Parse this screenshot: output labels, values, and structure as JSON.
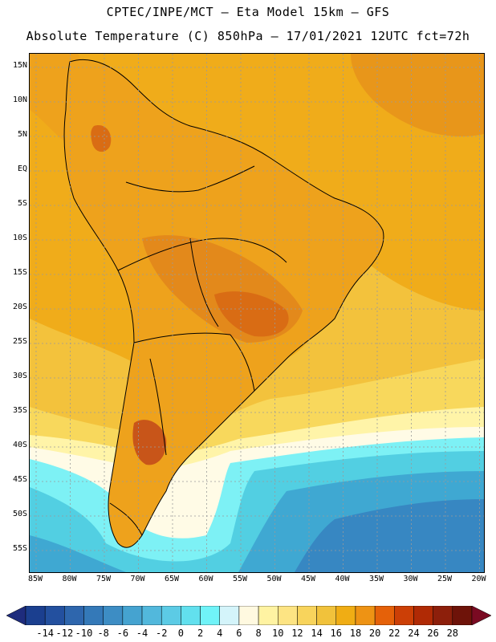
{
  "title": {
    "line1": "CPTEC/INPE/MCT –  Eta Model 15km – GFS",
    "line2": "Absolute Temperature (C) 850hPa – 17/01/2021 12UTC fct=72h"
  },
  "lat_labels": [
    "15N",
    "10N",
    "5N",
    "EQ",
    "5S",
    "10S",
    "15S",
    "20S",
    "25S",
    "30S",
    "35S",
    "40S",
    "45S",
    "50S",
    "55S"
  ],
  "lon_labels": [
    "85W",
    "80W",
    "75W",
    "70W",
    "65W",
    "60W",
    "55W",
    "50W",
    "45W",
    "40W",
    "35W",
    "30W",
    "25W",
    "20W"
  ],
  "colorbar": {
    "labels": [
      "-14",
      "-12",
      "-10",
      "-8",
      "-6",
      "-4",
      "-2",
      "0",
      "2",
      "4",
      "6",
      "8",
      "10",
      "12",
      "14",
      "16",
      "18",
      "20",
      "22",
      "24",
      "26",
      "28"
    ],
    "colors": [
      "#1b3f8f",
      "#23509f",
      "#2e66ad",
      "#3479b8",
      "#3d8dc4",
      "#45a3d0",
      "#52b8dc",
      "#5ccbe5",
      "#62e0ee",
      "#70f3f8",
      "#d4f4fa",
      "#fff9e0",
      "#fff3a2",
      "#fde483",
      "#f8d45c",
      "#f1c23b",
      "#f0ad14",
      "#ee9314",
      "#e56109",
      "#cc3f06",
      "#b02a05",
      "#8d1f0b",
      "#6e1309"
    ],
    "arrow_left": "#1e2c7d",
    "arrow_right": "#7a0a22"
  },
  "map": {
    "colors": {
      "ocean_north": "#f0ac1a",
      "ocean_warm": "#e8961a",
      "land_base": "#eea21c",
      "land_warm": "#e3891b",
      "land_hot": "#d96c14",
      "very_hot": "#c85519",
      "band_yellow": "#f3c23c",
      "band_light": "#f8d85c",
      "band_pale": "#fff4a8",
      "band_cream": "#fffbe6",
      "cold_1": "#7df1f5",
      "cold_2": "#52cfe2",
      "cold_3": "#3fa8d2",
      "cold_4": "#3787c2",
      "grid": "#9a9a9a",
      "border": "#000000"
    }
  }
}
